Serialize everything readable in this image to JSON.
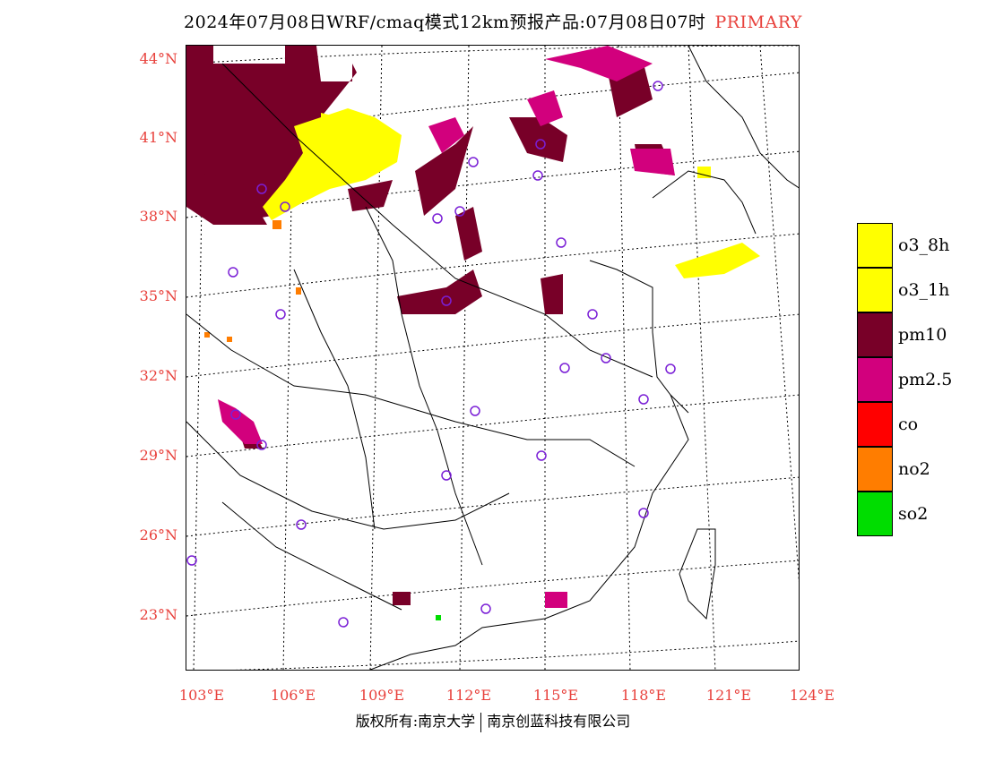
{
  "title": {
    "main": "2024年07月08日WRF/cmaq模式12km预报产品:07月08日07时",
    "tag": "PRIMARY"
  },
  "axes": {
    "lat_labels": [
      "44°N",
      "41°N",
      "38°N",
      "35°N",
      "32°N",
      "29°N",
      "26°N",
      "23°N"
    ],
    "lon_labels": [
      "103°E",
      "106°E",
      "109°E",
      "112°E",
      "115°E",
      "118°E",
      "121°E",
      "124°E"
    ]
  },
  "legend": {
    "items": [
      {
        "label": "o3_8h",
        "color": "#ffff00"
      },
      {
        "label": "o3_1h",
        "color": "#ffff00"
      },
      {
        "label": "pm10",
        "color": "#780028"
      },
      {
        "label": "pm2.5",
        "color": "#d2007d"
      },
      {
        "label": "co",
        "color": "#ff0000"
      },
      {
        "label": "no2",
        "color": "#ff7d00"
      },
      {
        "label": "so2",
        "color": "#00dd00"
      }
    ]
  },
  "colors": {
    "pm10": "#780028",
    "pm25": "#d2007d",
    "o3": "#ffff00",
    "no2": "#ff7d00",
    "so2": "#00dd00",
    "station": "#7a1fd6",
    "axis_label": "#e8413c"
  },
  "footer": {
    "left": "版权所有:南京大学",
    "right": "南京创蓝科技有限公司"
  }
}
